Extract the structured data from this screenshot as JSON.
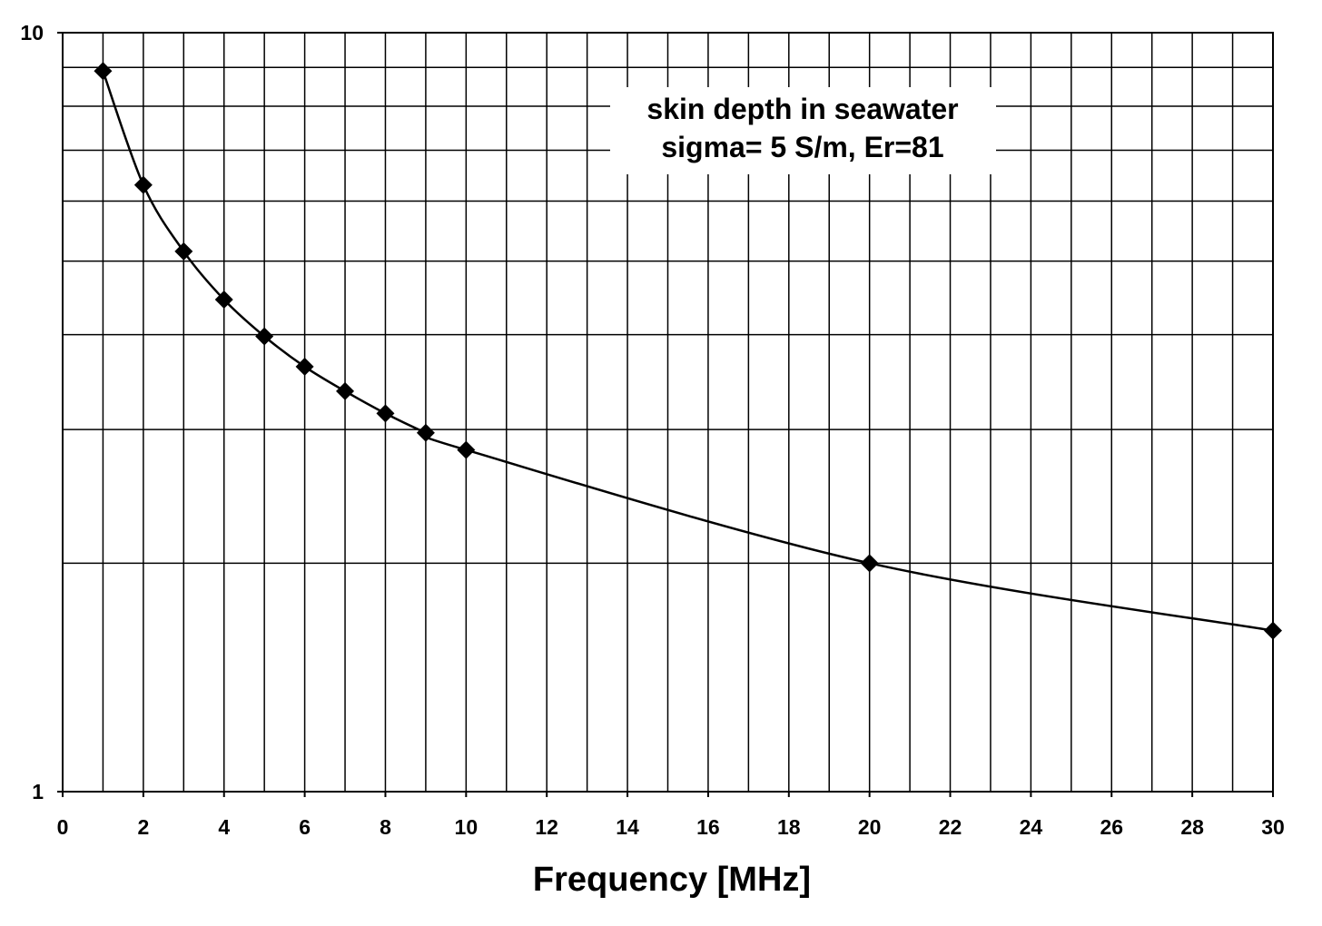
{
  "chart_data": {
    "type": "line",
    "title": "",
    "xlabel": "Frequency [MHz]",
    "ylabel": "",
    "xlim": [
      0,
      30
    ],
    "ylim": [
      1,
      10
    ],
    "yscale": "log",
    "grid": true,
    "x_ticks": [
      {
        "value": 0,
        "label": "0"
      },
      {
        "value": 2,
        "label": "2"
      },
      {
        "value": 4,
        "label": "4"
      },
      {
        "value": 6,
        "label": "6"
      },
      {
        "value": 8,
        "label": "8"
      },
      {
        "value": 10,
        "label": "10"
      },
      {
        "value": 12,
        "label": "12"
      },
      {
        "value": 14,
        "label": "14"
      },
      {
        "value": 16,
        "label": "16"
      },
      {
        "value": 18,
        "label": "18"
      },
      {
        "value": 20,
        "label": "20"
      },
      {
        "value": 22,
        "label": "22"
      },
      {
        "value": 24,
        "label": "24"
      },
      {
        "value": 26,
        "label": "26"
      },
      {
        "value": 28,
        "label": "28"
      },
      {
        "value": 30,
        "label": "30"
      }
    ],
    "y_ticks": [
      {
        "value": 1,
        "label": "1"
      },
      {
        "value": 10,
        "label": "10"
      }
    ],
    "x_minor_step": 1,
    "y_minor_values": [
      2,
      3,
      4,
      5,
      6,
      7,
      8,
      9
    ],
    "series": [
      {
        "name": "skin depth in seawater",
        "marker": "diamond",
        "color": "#000000",
        "x": [
          1,
          2,
          3,
          4,
          5,
          6,
          7,
          8,
          9,
          10,
          20,
          30
        ],
        "y": [
          8.9,
          6.3,
          5.15,
          4.45,
          3.98,
          3.63,
          3.37,
          3.15,
          2.97,
          2.82,
          2.0,
          1.63
        ]
      }
    ],
    "annotations": [
      "skin depth in seawater",
      "sigma= 5 S/m, Er=81"
    ]
  }
}
